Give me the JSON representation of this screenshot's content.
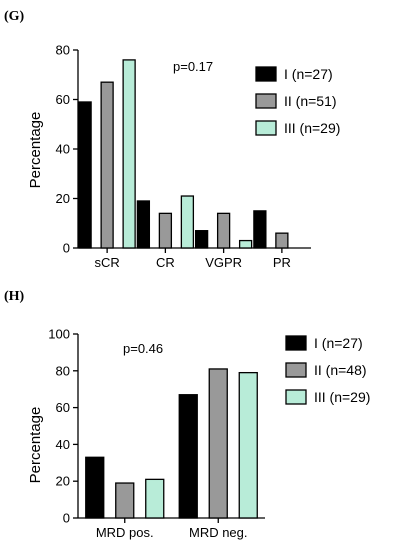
{
  "colors": {
    "I": "#000000",
    "II": "#999999",
    "III": "#b8ecd8",
    "stroke": "#000000"
  },
  "chart_data": [
    {
      "panel": "(G)",
      "type": "bar",
      "annotation": "p=0.17",
      "ylabel": "Percentage",
      "xlabel": "",
      "ylim": [
        0,
        80
      ],
      "yticks": [
        "0",
        "20",
        "40",
        "60",
        "80"
      ],
      "categories": [
        "sCR",
        "CR",
        "VGPR",
        "PR"
      ],
      "series": [
        {
          "name": "I (n=27)",
          "values": [
            59,
            19,
            7,
            15
          ]
        },
        {
          "name": "II (n=51)",
          "values": [
            67,
            14,
            14,
            6
          ]
        },
        {
          "name": "III (n=29)",
          "values": [
            76,
            21,
            3,
            null
          ]
        }
      ],
      "legend": "top-right"
    },
    {
      "panel": "(H)",
      "type": "bar",
      "annotation": "p=0.46",
      "ylabel": "Percentage",
      "xlabel": "",
      "ylim": [
        0,
        100
      ],
      "yticks": [
        "0",
        "20",
        "40",
        "60",
        "80",
        "100"
      ],
      "categories": [
        "MRD pos.",
        "MRD neg."
      ],
      "series": [
        {
          "name": "I (n=27)",
          "values": [
            33,
            67
          ]
        },
        {
          "name": "II (n=48)",
          "values": [
            19,
            81
          ]
        },
        {
          "name": "III (n=29)",
          "values": [
            21,
            79
          ]
        }
      ],
      "legend": "top-right"
    }
  ]
}
